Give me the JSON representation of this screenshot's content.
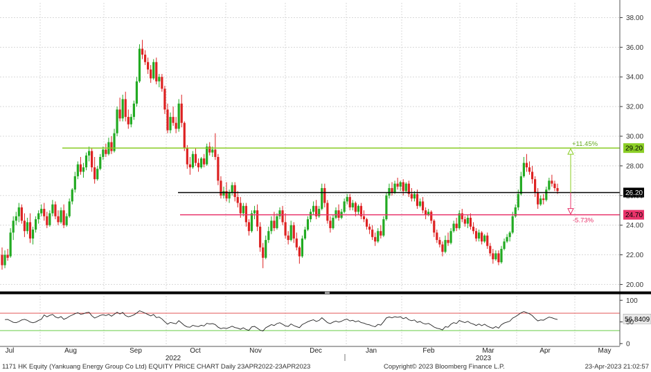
{
  "colors": {
    "up": "#22aa22",
    "down": "#dd2222",
    "resistance_line": "#88cc22",
    "mid_line": "#000000",
    "support_line": "#e8336a",
    "rsi_line": "#222222",
    "rsi_upper": "#e05555",
    "rsi_lower": "#66cc44",
    "separator": "#000000"
  },
  "chart_data": {
    "type": "candlestick",
    "ticker": "1171 HK Equity (Yankuang Energy Group Co Ltd)",
    "price_axis": {
      "ylim": [
        19.6,
        39.0
      ],
      "ticks": [
        20,
        22,
        24,
        26,
        28,
        30,
        32,
        34,
        36,
        38
      ],
      "tick_labels": [
        "20.00",
        "22.00",
        "24.00",
        "26.00",
        "28.00",
        "30.00",
        "32.00",
        "34.00",
        "36.00",
        "38.00"
      ]
    },
    "x_axis": {
      "months": [
        "Jul",
        "Aug",
        "Sep",
        "Oct",
        "Nov",
        "Dec",
        "Jan",
        "Feb",
        "Mar",
        "Apr",
        "May"
      ],
      "year_labels": [
        "2022",
        "2023"
      ]
    },
    "candles_ohlc": [
      [
        22.0,
        22.5,
        21.0,
        21.3
      ],
      [
        21.3,
        22.3,
        21.1,
        22.0
      ],
      [
        22.0,
        22.4,
        21.6,
        21.8
      ],
      [
        21.9,
        23.8,
        21.8,
        23.5
      ],
      [
        23.5,
        24.6,
        23.0,
        24.3
      ],
      [
        24.3,
        24.9,
        24.0,
        24.6
      ],
      [
        24.6,
        25.5,
        24.2,
        25.2
      ],
      [
        25.2,
        25.4,
        24.1,
        24.3
      ],
      [
        24.3,
        24.8,
        23.2,
        23.6
      ],
      [
        23.6,
        24.5,
        23.4,
        24.2
      ],
      [
        24.2,
        24.8,
        22.8,
        23.1
      ],
      [
        23.1,
        23.9,
        22.7,
        23.7
      ],
      [
        23.7,
        24.6,
        23.5,
        24.4
      ],
      [
        24.4,
        25.0,
        24.1,
        24.8
      ],
      [
        24.8,
        25.4,
        24.6,
        25.1
      ],
      [
        25.1,
        25.5,
        24.3,
        24.6
      ],
      [
        24.6,
        24.9,
        23.8,
        24.0
      ],
      [
        24.0,
        25.0,
        23.9,
        24.8
      ],
      [
        24.8,
        25.7,
        24.6,
        25.4
      ],
      [
        25.4,
        25.6,
        24.4,
        24.6
      ],
      [
        24.6,
        25.0,
        24.0,
        24.2
      ],
      [
        24.2,
        25.2,
        24.1,
        25.0
      ],
      [
        25.0,
        25.4,
        23.8,
        24.0
      ],
      [
        24.0,
        24.8,
        23.9,
        24.6
      ],
      [
        24.6,
        25.8,
        24.5,
        25.6
      ],
      [
        25.6,
        26.5,
        25.4,
        26.4
      ],
      [
        26.4,
        27.6,
        26.2,
        27.3
      ],
      [
        27.3,
        28.3,
        27.1,
        28.1
      ],
      [
        28.1,
        28.6,
        27.4,
        27.6
      ],
      [
        27.6,
        28.2,
        27.2,
        27.9
      ],
      [
        27.9,
        28.9,
        27.7,
        28.7
      ],
      [
        28.7,
        29.3,
        28.3,
        29.0
      ],
      [
        29.0,
        29.2,
        27.6,
        27.9
      ],
      [
        27.9,
        28.6,
        26.8,
        27.1
      ],
      [
        27.1,
        28.0,
        27.0,
        27.8
      ],
      [
        27.8,
        28.8,
        27.7,
        28.6
      ],
      [
        28.6,
        29.3,
        28.4,
        29.1
      ],
      [
        29.1,
        29.5,
        28.6,
        28.8
      ],
      [
        28.8,
        29.9,
        28.7,
        29.6
      ],
      [
        29.6,
        30.0,
        28.8,
        29.0
      ],
      [
        29.0,
        30.5,
        28.9,
        30.2
      ],
      [
        30.2,
        32.0,
        30.0,
        31.8
      ],
      [
        31.8,
        32.6,
        31.0,
        31.2
      ],
      [
        31.2,
        32.8,
        31.0,
        32.5
      ],
      [
        32.5,
        33.0,
        31.0,
        31.3
      ],
      [
        31.3,
        31.8,
        30.5,
        30.8
      ],
      [
        30.8,
        31.5,
        30.6,
        31.3
      ],
      [
        31.3,
        32.4,
        31.1,
        32.2
      ],
      [
        32.2,
        34.0,
        32.0,
        33.7
      ],
      [
        33.7,
        36.2,
        33.6,
        35.9
      ],
      [
        35.9,
        36.5,
        35.2,
        35.5
      ],
      [
        35.5,
        35.8,
        34.8,
        35.0
      ],
      [
        35.0,
        35.3,
        34.2,
        34.5
      ],
      [
        34.5,
        34.8,
        33.6,
        33.9
      ],
      [
        33.9,
        35.2,
        33.8,
        35.0
      ],
      [
        35.0,
        35.3,
        33.5,
        33.7
      ],
      [
        33.7,
        34.2,
        33.3,
        34.0
      ],
      [
        34.0,
        34.2,
        33.0,
        33.2
      ],
      [
        33.2,
        33.4,
        31.5,
        31.8
      ],
      [
        31.8,
        32.2,
        30.2,
        30.4
      ],
      [
        30.4,
        31.6,
        30.2,
        31.3
      ],
      [
        31.3,
        32.0,
        30.7,
        30.9
      ],
      [
        30.9,
        31.3,
        30.2,
        30.5
      ],
      [
        30.5,
        32.5,
        30.3,
        32.2
      ],
      [
        32.2,
        32.8,
        30.6,
        30.9
      ],
      [
        30.9,
        31.0,
        29.0,
        29.2
      ],
      [
        29.2,
        29.4,
        27.8,
        28.1
      ],
      [
        28.1,
        28.6,
        27.4,
        27.9
      ],
      [
        27.9,
        29.0,
        27.8,
        28.8
      ],
      [
        28.8,
        29.2,
        28.0,
        28.2
      ],
      [
        28.2,
        28.5,
        27.6,
        27.9
      ],
      [
        27.9,
        28.6,
        27.8,
        28.5
      ],
      [
        28.5,
        28.8,
        27.9,
        28.1
      ],
      [
        28.1,
        29.5,
        28.0,
        29.3
      ],
      [
        29.3,
        29.6,
        28.7,
        28.9
      ],
      [
        28.9,
        29.3,
        28.6,
        29.1
      ],
      [
        29.1,
        30.2,
        28.4,
        28.6
      ],
      [
        28.6,
        28.8,
        26.7,
        27.0
      ],
      [
        27.0,
        27.3,
        25.8,
        26.0
      ],
      [
        26.0,
        26.6,
        25.8,
        26.3
      ],
      [
        26.3,
        26.9,
        25.6,
        25.8
      ],
      [
        25.8,
        26.4,
        25.5,
        26.2
      ],
      [
        26.2,
        26.9,
        26.0,
        26.7
      ],
      [
        26.7,
        26.9,
        25.6,
        25.9
      ],
      [
        25.9,
        26.3,
        25.2,
        25.5
      ],
      [
        25.5,
        25.9,
        24.5,
        24.8
      ],
      [
        24.8,
        25.5,
        24.6,
        25.3
      ],
      [
        25.3,
        25.5,
        23.9,
        24.2
      ],
      [
        24.2,
        24.4,
        23.3,
        23.6
      ],
      [
        23.6,
        25.0,
        23.5,
        24.8
      ],
      [
        24.8,
        25.3,
        24.4,
        25.0
      ],
      [
        25.0,
        25.4,
        23.6,
        23.9
      ],
      [
        23.9,
        24.2,
        22.2,
        22.5
      ],
      [
        22.5,
        22.8,
        21.1,
        21.8
      ],
      [
        21.8,
        23.3,
        21.7,
        23.0
      ],
      [
        23.0,
        23.9,
        22.8,
        23.6
      ],
      [
        23.6,
        24.6,
        23.4,
        24.3
      ],
      [
        24.3,
        24.9,
        23.6,
        23.8
      ],
      [
        23.8,
        24.8,
        23.7,
        24.6
      ],
      [
        24.6,
        25.2,
        24.4,
        25.0
      ],
      [
        25.0,
        25.3,
        24.0,
        24.2
      ],
      [
        24.2,
        24.8,
        23.1,
        23.3
      ],
      [
        23.3,
        23.6,
        22.7,
        23.0
      ],
      [
        23.0,
        24.3,
        22.9,
        24.0
      ],
      [
        24.0,
        24.2,
        22.8,
        23.1
      ],
      [
        23.1,
        23.5,
        22.3,
        22.5
      ],
      [
        22.5,
        22.6,
        21.4,
        21.9
      ],
      [
        21.9,
        23.3,
        21.8,
        23.1
      ],
      [
        23.1,
        23.9,
        23.0,
        23.7
      ],
      [
        23.7,
        24.6,
        23.6,
        24.4
      ],
      [
        24.4,
        25.1,
        24.2,
        24.9
      ],
      [
        24.9,
        25.6,
        24.7,
        25.3
      ],
      [
        25.3,
        25.7,
        24.4,
        24.6
      ],
      [
        24.6,
        25.3,
        24.5,
        25.1
      ],
      [
        25.1,
        26.8,
        25.0,
        26.5
      ],
      [
        26.5,
        26.8,
        25.2,
        25.5
      ],
      [
        25.5,
        25.7,
        24.1,
        24.3
      ],
      [
        24.3,
        24.6,
        23.5,
        23.8
      ],
      [
        23.8,
        24.7,
        23.7,
        24.5
      ],
      [
        24.5,
        25.2,
        24.4,
        25.0
      ],
      [
        25.0,
        25.4,
        24.3,
        24.5
      ],
      [
        24.5,
        25.1,
        24.4,
        24.9
      ],
      [
        24.9,
        25.8,
        24.8,
        25.6
      ],
      [
        25.6,
        26.1,
        25.4,
        25.9
      ],
      [
        25.9,
        26.1,
        25.0,
        25.2
      ],
      [
        25.2,
        25.7,
        25.0,
        25.5
      ],
      [
        25.5,
        25.6,
        24.6,
        24.9
      ],
      [
        24.9,
        25.4,
        24.7,
        25.3
      ],
      [
        25.3,
        25.5,
        24.4,
        24.6
      ],
      [
        24.6,
        25.0,
        24.2,
        24.4
      ],
      [
        24.4,
        24.5,
        23.7,
        23.9
      ],
      [
        23.9,
        24.1,
        23.4,
        23.7
      ],
      [
        23.7,
        24.0,
        23.0,
        23.2
      ],
      [
        23.2,
        23.5,
        22.6,
        22.9
      ],
      [
        22.9,
        23.8,
        22.8,
        23.6
      ],
      [
        23.6,
        24.0,
        23.1,
        23.3
      ],
      [
        23.3,
        24.6,
        23.2,
        24.4
      ],
      [
        24.4,
        26.2,
        24.3,
        26.0
      ],
      [
        26.0,
        26.8,
        25.8,
        26.5
      ],
      [
        26.5,
        26.9,
        26.0,
        26.2
      ],
      [
        26.2,
        27.0,
        26.1,
        26.8
      ],
      [
        26.8,
        27.2,
        26.4,
        26.6
      ],
      [
        26.6,
        27.0,
        26.3,
        26.9
      ],
      [
        26.9,
        27.1,
        26.0,
        26.3
      ],
      [
        26.3,
        26.9,
        26.2,
        26.8
      ],
      [
        26.8,
        27.0,
        25.9,
        26.1
      ],
      [
        26.1,
        26.5,
        25.6,
        25.8
      ],
      [
        25.8,
        26.3,
        25.6,
        26.1
      ],
      [
        26.1,
        26.4,
        25.1,
        25.3
      ],
      [
        25.3,
        25.8,
        25.2,
        25.6
      ],
      [
        25.6,
        25.9,
        24.8,
        25.0
      ],
      [
        25.0,
        25.2,
        24.4,
        24.7
      ],
      [
        24.7,
        25.1,
        24.6,
        24.9
      ],
      [
        24.9,
        25.0,
        24.1,
        24.3
      ],
      [
        24.3,
        24.4,
        23.2,
        23.5
      ],
      [
        23.5,
        23.7,
        22.8,
        23.0
      ],
      [
        23.0,
        23.2,
        22.5,
        22.7
      ],
      [
        22.7,
        22.9,
        21.9,
        22.2
      ],
      [
        22.2,
        23.3,
        22.1,
        23.0
      ],
      [
        23.0,
        23.5,
        22.6,
        22.8
      ],
      [
        22.8,
        23.8,
        22.7,
        23.6
      ],
      [
        23.6,
        24.3,
        23.5,
        24.1
      ],
      [
        24.1,
        24.5,
        23.6,
        23.8
      ],
      [
        23.8,
        25.0,
        23.7,
        24.8
      ],
      [
        24.8,
        25.1,
        24.2,
        24.4
      ],
      [
        24.4,
        24.6,
        23.9,
        24.1
      ],
      [
        24.1,
        24.7,
        23.8,
        24.5
      ],
      [
        24.5,
        24.8,
        23.7,
        23.9
      ],
      [
        23.9,
        24.2,
        23.4,
        23.6
      ],
      [
        23.6,
        23.8,
        22.9,
        23.1
      ],
      [
        23.1,
        23.7,
        22.9,
        23.5
      ],
      [
        23.5,
        23.6,
        22.7,
        22.9
      ],
      [
        22.9,
        23.4,
        22.8,
        23.3
      ],
      [
        23.3,
        23.5,
        22.4,
        22.6
      ],
      [
        22.6,
        22.8,
        21.9,
        22.1
      ],
      [
        22.1,
        22.4,
        21.4,
        21.7
      ],
      [
        21.7,
        22.3,
        21.6,
        22.1
      ],
      [
        22.1,
        22.3,
        21.3,
        21.5
      ],
      [
        21.5,
        22.6,
        21.4,
        22.4
      ],
      [
        22.4,
        23.1,
        22.3,
        22.9
      ],
      [
        22.9,
        23.4,
        22.8,
        23.2
      ],
      [
        23.2,
        23.6,
        22.9,
        23.5
      ],
      [
        23.5,
        24.9,
        23.4,
        24.6
      ],
      [
        24.6,
        25.4,
        24.5,
        25.2
      ],
      [
        25.2,
        26.4,
        25.0,
        26.1
      ],
      [
        26.1,
        27.6,
        26.0,
        27.3
      ],
      [
        27.3,
        28.6,
        27.2,
        28.2
      ],
      [
        28.2,
        28.8,
        27.6,
        27.9
      ],
      [
        27.9,
        28.3,
        27.4,
        27.6
      ],
      [
        27.6,
        28.0,
        26.8,
        27.1
      ],
      [
        27.1,
        27.3,
        25.9,
        26.2
      ],
      [
        26.2,
        26.5,
        25.1,
        25.4
      ],
      [
        25.4,
        26.0,
        25.3,
        25.8
      ],
      [
        25.8,
        26.1,
        25.4,
        25.7
      ],
      [
        25.7,
        26.6,
        25.6,
        26.4
      ],
      [
        26.4,
        27.2,
        26.3,
        27.0
      ],
      [
        27.0,
        27.4,
        26.6,
        26.8
      ],
      [
        26.8,
        27.0,
        26.3,
        26.5
      ],
      [
        26.5,
        26.8,
        26.1,
        26.3
      ]
    ],
    "levels": [
      {
        "name": "resistance",
        "value": 29.2,
        "label": "29.20",
        "change_label": "+11.45%"
      },
      {
        "name": "current",
        "value": 26.2,
        "label": "26.20"
      },
      {
        "name": "support",
        "value": 24.7,
        "label": "24.70",
        "change_label": "-5.73%"
      }
    ],
    "rsi_panel": {
      "ylim": [
        -5,
        110
      ],
      "ticks": [
        0,
        50,
        100
      ],
      "tick_labels": [
        "0",
        "50",
        "100"
      ],
      "upper_band": 70,
      "lower_band": 30,
      "last_value_label": "56.8409"
    }
  },
  "footer": {
    "left": "1171 HK Equity (Yankuang Energy Group Co Ltd) EQUITY PRICE CHART  Daily 23APR2022-23APR2023",
    "center": "Copyright© 2023 Bloomberg Finance L.P.",
    "right": "23-Apr-2023 21:02:57"
  }
}
